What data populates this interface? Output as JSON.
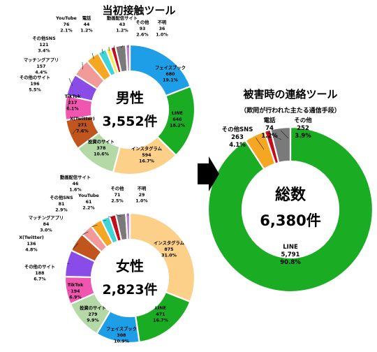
{
  "left_title": "当初接触ツール",
  "right_title": "被害時の連絡ツール",
  "right_subtitle": "（欺罔が行われた主たる通信手段）",
  "chart_data": [
    {
      "type": "pie",
      "center_label": "男性",
      "total_label": "3,552件",
      "slices": [
        {
          "name": "フェイスブック",
          "count": "680",
          "pct": "19.1%",
          "value": 19.1,
          "color": "#1f9ee8"
        },
        {
          "name": "LINE",
          "count": "646",
          "pct": "18.2%",
          "value": 18.2,
          "color": "#1aad23"
        },
        {
          "name": "インスタグラム",
          "count": "594",
          "pct": "16.7%",
          "value": 16.7,
          "color": "#fdd08a"
        },
        {
          "name": "投資のサイト",
          "count": "378",
          "pct": "10.6%",
          "value": 10.6,
          "color": "#b5d9a6"
        },
        {
          "name": "X(Twitter)",
          "count": "271",
          "pct": "7.6%",
          "value": 7.6,
          "color": "#c0561e"
        },
        {
          "name": "TikTok",
          "count": "217",
          "pct": "6.1%",
          "value": 6.1,
          "color": "#f056b0"
        },
        {
          "name": "その他のサイト",
          "count": "196",
          "pct": "5.5%",
          "value": 5.5,
          "color": "#8a4ce6"
        },
        {
          "name": "マッチングアプリ",
          "count": "157",
          "pct": "4.4%",
          "value": 4.4,
          "color": "#f29a9a"
        },
        {
          "name": "その他SNS",
          "count": "121",
          "pct": "3.4%",
          "value": 3.4,
          "color": "#f5a623"
        },
        {
          "name": "YouTube",
          "count": "76",
          "pct": "2.1%",
          "value": 2.1,
          "color": "#3fd5d8"
        },
        {
          "name": "電話",
          "count": "44",
          "pct": "1.2%",
          "value": 1.2,
          "color": "#fbe94c"
        },
        {
          "name": "動画配信サイト",
          "count": "43",
          "pct": "1.2%",
          "value": 1.2,
          "color": "#c70b1a"
        },
        {
          "name": "その他",
          "count": "93",
          "pct": "2.6%",
          "value": 2.6,
          "color": "#7a7a7a"
        },
        {
          "name": "不明",
          "count": "36",
          "pct": "1.0%",
          "value": 1.0,
          "color": "#c07dd8"
        }
      ]
    },
    {
      "type": "pie",
      "center_label": "女性",
      "total_label": "2,823件",
      "slices": [
        {
          "name": "インスタグラム",
          "count": "875",
          "pct": "31.0%",
          "value": 31.0,
          "color": "#fdd08a"
        },
        {
          "name": "LINE",
          "count": "471",
          "pct": "16.7%",
          "value": 16.7,
          "color": "#1aad23"
        },
        {
          "name": "フェイスブック",
          "count": "308",
          "pct": "10.9%",
          "value": 10.9,
          "color": "#1f9ee8"
        },
        {
          "name": "投資のサイト",
          "count": "279",
          "pct": "9.9%",
          "value": 9.9,
          "color": "#b5d9a6"
        },
        {
          "name": "TikTok",
          "count": "194",
          "pct": "6.9%",
          "value": 6.9,
          "color": "#f056b0"
        },
        {
          "name": "その他のサイト",
          "count": "188",
          "pct": "6.7%",
          "value": 6.7,
          "color": "#8a4ce6"
        },
        {
          "name": "X(Twitter)",
          "count": "136",
          "pct": "4.8%",
          "value": 4.8,
          "color": "#c0561e"
        },
        {
          "name": "マッチングアプリ",
          "count": "84",
          "pct": "3.0%",
          "value": 3.0,
          "color": "#f29a9a"
        },
        {
          "name": "その他SNS",
          "count": "81",
          "pct": "2.9%",
          "value": 2.9,
          "color": "#f5a623"
        },
        {
          "name": "YouTube",
          "count": "61",
          "pct": "2.2%",
          "value": 2.2,
          "color": "#3fd5d8"
        },
        {
          "name": "動画配信サイト",
          "count": "46",
          "pct": "1.6%",
          "value": 1.6,
          "color": "#c70b1a"
        },
        {
          "name": "その他",
          "count": "71",
          "pct": "2.5%",
          "value": 2.5,
          "color": "#7a7a7a"
        },
        {
          "name": "不明",
          "count": "29",
          "pct": "1.0%",
          "value": 1.0,
          "color": "#c07dd8"
        }
      ]
    },
    {
      "type": "pie",
      "center_label": "総数",
      "total_label": "6,380件",
      "slices": [
        {
          "name": "LINE",
          "count": "5,791",
          "pct": "90.8%",
          "value": 90.8,
          "color": "#1aad23"
        },
        {
          "name": "その他SNS",
          "count": "263",
          "pct": "4.1%",
          "value": 4.1,
          "color": "#f5a623"
        },
        {
          "name": "電話",
          "count": "74",
          "pct": "1.2%",
          "value": 1.2,
          "color": "#c70b1a"
        },
        {
          "name": "その他",
          "count": "252",
          "pct": "3.9%",
          "value": 3.9,
          "color": "#7a7a7a"
        }
      ]
    }
  ]
}
